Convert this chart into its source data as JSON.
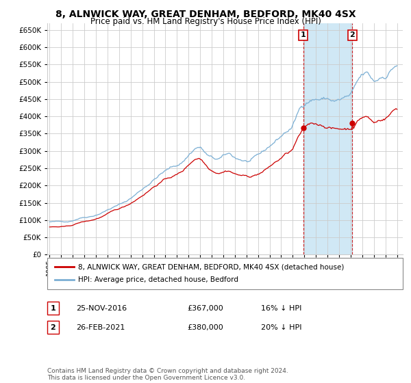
{
  "title": "8, ALNWICK WAY, GREAT DENHAM, BEDFORD, MK40 4SX",
  "subtitle": "Price paid vs. HM Land Registry's House Price Index (HPI)",
  "legend_line1": "8, ALNWICK WAY, GREAT DENHAM, BEDFORD, MK40 4SX (detached house)",
  "legend_line2": "HPI: Average price, detached house, Bedford",
  "annotation1_label": "1",
  "annotation1_date": "25-NOV-2016",
  "annotation1_price": "£367,000",
  "annotation1_hpi": "16% ↓ HPI",
  "annotation2_label": "2",
  "annotation2_date": "26-FEB-2021",
  "annotation2_price": "£380,000",
  "annotation2_hpi": "20% ↓ HPI",
  "footer": "Contains HM Land Registry data © Crown copyright and database right 2024.\nThis data is licensed under the Open Government Licence v3.0.",
  "hpi_color": "#7BAFD4",
  "price_color": "#CC0000",
  "shade_color": "#D0E8F5",
  "annotation_color": "#CC0000",
  "background_color": "#FFFFFF",
  "grid_color": "#CCCCCC",
  "ylim": [
    0,
    670000
  ],
  "yticks": [
    0,
    50000,
    100000,
    150000,
    200000,
    250000,
    300000,
    350000,
    400000,
    450000,
    500000,
    550000,
    600000,
    650000
  ],
  "sale1_year": 2016.9,
  "sale1_price": 367000,
  "sale2_year": 2021.15,
  "sale2_price": 380000
}
